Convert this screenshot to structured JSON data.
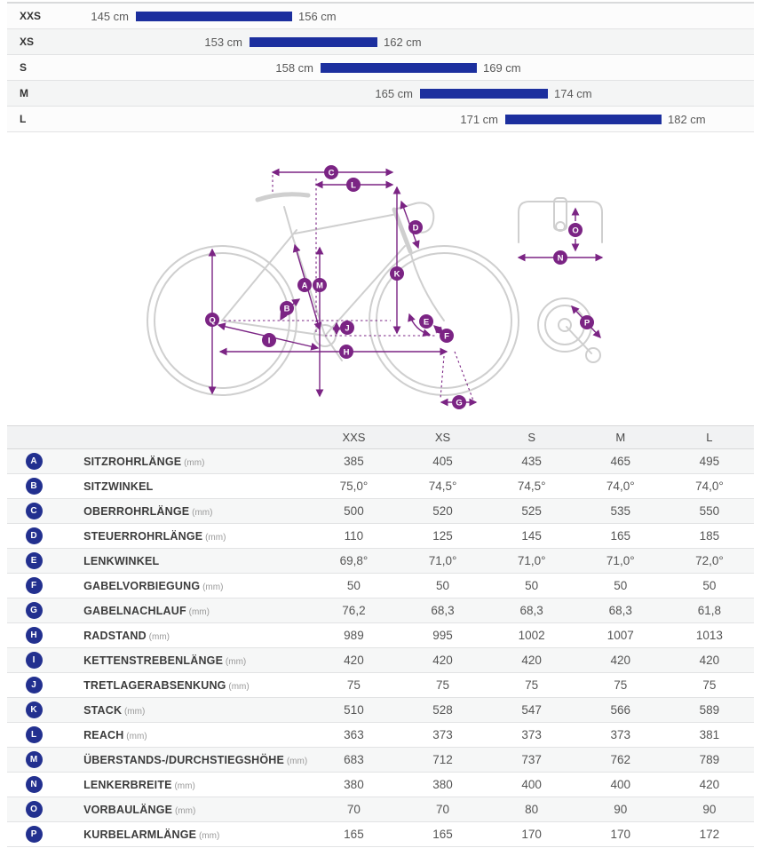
{
  "colors": {
    "bar-blue": "#1c2f9e",
    "badge-navy": "#22308f",
    "purple": "#7b2484"
  },
  "size_chart": {
    "unit": "cm",
    "rows": [
      {
        "label": "XXS",
        "min_cm": 145,
        "max_cm": 156,
        "min_label": "145 cm",
        "max_label": "156 cm"
      },
      {
        "label": "XS",
        "min_cm": 153,
        "max_cm": 162,
        "min_label": "153 cm",
        "max_label": "162 cm"
      },
      {
        "label": "S",
        "min_cm": 158,
        "max_cm": 169,
        "min_label": "158 cm",
        "max_label": "169 cm"
      },
      {
        "label": "M",
        "min_cm": 165,
        "max_cm": 174,
        "min_label": "165 cm",
        "max_label": "174 cm"
      },
      {
        "label": "L",
        "min_cm": 171,
        "max_cm": 182,
        "min_label": "171 cm",
        "max_label": "182 cm"
      }
    ]
  },
  "diagram": {
    "letters": [
      "A",
      "B",
      "C",
      "D",
      "E",
      "F",
      "G",
      "H",
      "I",
      "J",
      "K",
      "L",
      "M",
      "N",
      "O",
      "P",
      "Q"
    ]
  },
  "table": {
    "headers": [
      "XXS",
      "XS",
      "S",
      "M",
      "L"
    ],
    "rows": [
      {
        "letter": "A",
        "label": "SITZROHRLÄNGE",
        "unit": "(mm)",
        "values": [
          "385",
          "405",
          "435",
          "465",
          "495"
        ]
      },
      {
        "letter": "B",
        "label": "SITZWINKEL",
        "unit": "",
        "values": [
          "75,0°",
          "74,5°",
          "74,5°",
          "74,0°",
          "74,0°"
        ]
      },
      {
        "letter": "C",
        "label": "OBERROHRLÄNGE",
        "unit": "(mm)",
        "values": [
          "500",
          "520",
          "525",
          "535",
          "550"
        ]
      },
      {
        "letter": "D",
        "label": "STEUERROHRLÄNGE",
        "unit": "(mm)",
        "values": [
          "110",
          "125",
          "145",
          "165",
          "185"
        ]
      },
      {
        "letter": "E",
        "label": "LENKWINKEL",
        "unit": "",
        "values": [
          "69,8°",
          "71,0°",
          "71,0°",
          "71,0°",
          "72,0°"
        ]
      },
      {
        "letter": "F",
        "label": "GABELVORBIEGUNG",
        "unit": "(mm)",
        "values": [
          "50",
          "50",
          "50",
          "50",
          "50"
        ]
      },
      {
        "letter": "G",
        "label": "GABELNACHLAUF",
        "unit": "(mm)",
        "values": [
          "76,2",
          "68,3",
          "68,3",
          "68,3",
          "61,8"
        ]
      },
      {
        "letter": "H",
        "label": "RADSTAND",
        "unit": "(mm)",
        "values": [
          "989",
          "995",
          "1002",
          "1007",
          "1013"
        ]
      },
      {
        "letter": "I",
        "label": "KETTENSTREBENLÄNGE",
        "unit": "(mm)",
        "values": [
          "420",
          "420",
          "420",
          "420",
          "420"
        ]
      },
      {
        "letter": "J",
        "label": "TRETLAGERABSENKUNG",
        "unit": "(mm)",
        "values": [
          "75",
          "75",
          "75",
          "75",
          "75"
        ]
      },
      {
        "letter": "K",
        "label": "STACK",
        "unit": "(mm)",
        "values": [
          "510",
          "528",
          "547",
          "566",
          "589"
        ]
      },
      {
        "letter": "L",
        "label": "REACH",
        "unit": "(mm)",
        "values": [
          "363",
          "373",
          "373",
          "373",
          "381"
        ]
      },
      {
        "letter": "M",
        "label": "ÜBERSTANDS-/DURCHSTIEGSHÖHE",
        "unit": "(mm)",
        "values": [
          "683",
          "712",
          "737",
          "762",
          "789"
        ]
      },
      {
        "letter": "N",
        "label": "LENKERBREITE",
        "unit": "(mm)",
        "values": [
          "380",
          "380",
          "400",
          "400",
          "420"
        ]
      },
      {
        "letter": "O",
        "label": "VORBAULÄNGE",
        "unit": "(mm)",
        "values": [
          "70",
          "70",
          "80",
          "90",
          "90"
        ]
      },
      {
        "letter": "P",
        "label": "KURBELARMLÄNGE",
        "unit": "(mm)",
        "values": [
          "165",
          "165",
          "170",
          "170",
          "172"
        ]
      }
    ]
  }
}
